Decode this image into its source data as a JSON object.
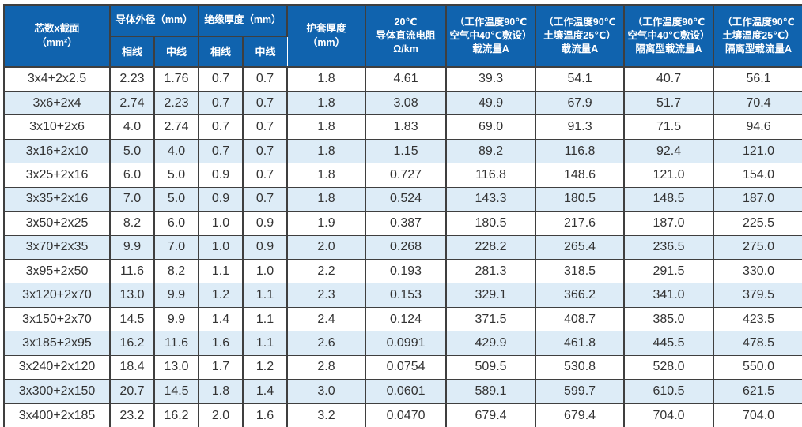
{
  "colors": {
    "header_bg": "#1063ae",
    "stripe": "#ddecf7",
    "grid": "#3f3f3f",
    "body_text": "#333333",
    "header_text": "#ffffff"
  },
  "table": {
    "header": {
      "cores": [
        "芯数x截面",
        "（mm²）"
      ],
      "conductor_od": "导体外径（mm）",
      "insulation": "绝缘厚度（mm）",
      "phase": "相线",
      "neutral": "中线",
      "sheath": [
        "护套厚度",
        "（mm）"
      ],
      "resistance": [
        "20℃",
        "导体直流电阻",
        "Ω/km"
      ],
      "ampacity_air": [
        "（工作温度90℃",
        "空气中40℃敷设）",
        "载流量A"
      ],
      "ampacity_soil": [
        "（工作温度90℃",
        "土壤温度25℃）",
        "载流量A"
      ],
      "ampacity_air_isolated": [
        "（工作温度90℃",
        "空气中40℃敷设）",
        "隔离型载流量A"
      ],
      "ampacity_soil_isolated": [
        "（工作温度90℃",
        "土壤温度25℃）",
        "隔离型载流量A"
      ]
    },
    "rows": [
      [
        "3x4+2x2.5",
        "2.23",
        "1.76",
        "0.7",
        "0.7",
        "1.8",
        "4.61",
        "39.3",
        "54.1",
        "40.7",
        "56.1"
      ],
      [
        "3x6+2x4",
        "2.74",
        "2.23",
        "0.7",
        "0.7",
        "1.8",
        "3.08",
        "49.9",
        "67.9",
        "51.7",
        "70.4"
      ],
      [
        "3x10+2x6",
        "4.0",
        "2.74",
        "0.7",
        "0.7",
        "1.8",
        "1.83",
        "69.0",
        "91.3",
        "71.5",
        "94.6"
      ],
      [
        "3x16+2x10",
        "5.0",
        "4.0",
        "0.7",
        "0.7",
        "1.8",
        "1.15",
        "89.2",
        "116.8",
        "92.4",
        "121.0"
      ],
      [
        "3x25+2x16",
        "6.0",
        "5.0",
        "0.9",
        "0.7",
        "1.8",
        "0.727",
        "116.8",
        "148.6",
        "121.0",
        "154.0"
      ],
      [
        "3x35+2x16",
        "7.0",
        "5.0",
        "0.9",
        "0.7",
        "1.8",
        "0.524",
        "143.3",
        "180.5",
        "148.5",
        "187.0"
      ],
      [
        "3x50+2x25",
        "8.2",
        "6.0",
        "1.0",
        "0.9",
        "1.9",
        "0.387",
        "180.5",
        "217.6",
        "187.0",
        "225.5"
      ],
      [
        "3x70+2x35",
        "9.9",
        "7.0",
        "1.0",
        "0.9",
        "2.0",
        "0.268",
        "228.2",
        "265.4",
        "236.5",
        "275.0"
      ],
      [
        "3x95+2x50",
        "11.6",
        "8.2",
        "1.1",
        "1.0",
        "2.2",
        "0.193",
        "281.3",
        "318.5",
        "291.5",
        "330.0"
      ],
      [
        "3x120+2x70",
        "13.0",
        "9.9",
        "1.2",
        "1.1",
        "2.3",
        "0.153",
        "329.1",
        "366.2",
        "341.0",
        "379.5"
      ],
      [
        "3x150+2x70",
        "14.5",
        "9.9",
        "1.4",
        "1.1",
        "2.4",
        "0.124",
        "371.5",
        "408.7",
        "385.0",
        "423.5"
      ],
      [
        "3x185+2x95",
        "16.2",
        "11.6",
        "1.6",
        "1.1",
        "2.6",
        "0.0991",
        "429.9",
        "461.8",
        "445.5",
        "478.5"
      ],
      [
        "3x240+2x120",
        "18.4",
        "13.0",
        "1.7",
        "1.2",
        "2.8",
        "0.0754",
        "509.5",
        "530.8",
        "528.0",
        "550.0"
      ],
      [
        "3x300+2x150",
        "20.7",
        "14.5",
        "1.8",
        "1.4",
        "3.0",
        "0.0601",
        "589.1",
        "599.7",
        "610.5",
        "621.5"
      ],
      [
        "3x400+2x185",
        "23.2",
        "16.2",
        "2.0",
        "1.6",
        "3.2",
        "0.0470",
        "679.4",
        "679.4",
        "704.0",
        "704.0"
      ]
    ]
  }
}
